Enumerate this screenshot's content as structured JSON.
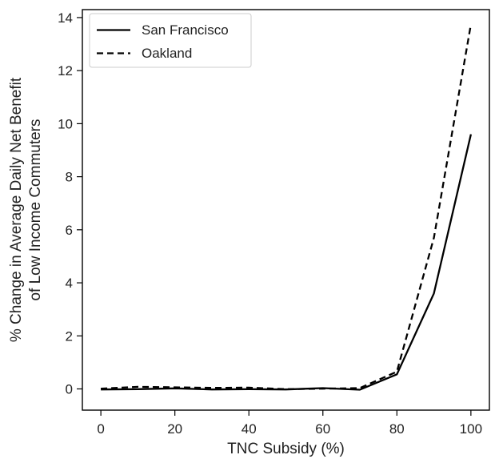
{
  "chart_data": {
    "type": "line",
    "title": "",
    "xlabel": "TNC Subsidy (%)",
    "ylabel_line1": "% Change in Average Daily Net Benefit",
    "ylabel_line2": "of Low Income Commuters",
    "xlim": [
      -5,
      105
    ],
    "ylim": [
      -0.8,
      14.3
    ],
    "x_ticks": [
      0,
      20,
      40,
      60,
      80,
      100
    ],
    "x_tick_labels": [
      "0",
      "20",
      "40",
      "60",
      "80",
      "100"
    ],
    "y_ticks": [
      0,
      2,
      4,
      6,
      8,
      10,
      12,
      14
    ],
    "y_tick_labels": [
      "0",
      "2",
      "4",
      "6",
      "8",
      "10",
      "12",
      "14"
    ],
    "grid": false,
    "legend_position": "top-left",
    "x": [
      0,
      10,
      20,
      30,
      40,
      50,
      60,
      70,
      80,
      90,
      100
    ],
    "series": [
      {
        "name": "San Francisco",
        "line_style": "solid",
        "color": "#000000",
        "values": [
          -0.02,
          -0.01,
          0.02,
          -0.02,
          -0.01,
          -0.02,
          0.03,
          -0.03,
          0.55,
          3.6,
          9.6
        ]
      },
      {
        "name": "Oakland",
        "line_style": "dashed",
        "color": "#000000",
        "values": [
          0.01,
          0.08,
          0.06,
          0.04,
          0.05,
          -0.01,
          0.01,
          0.03,
          0.65,
          5.7,
          13.75
        ]
      }
    ]
  }
}
